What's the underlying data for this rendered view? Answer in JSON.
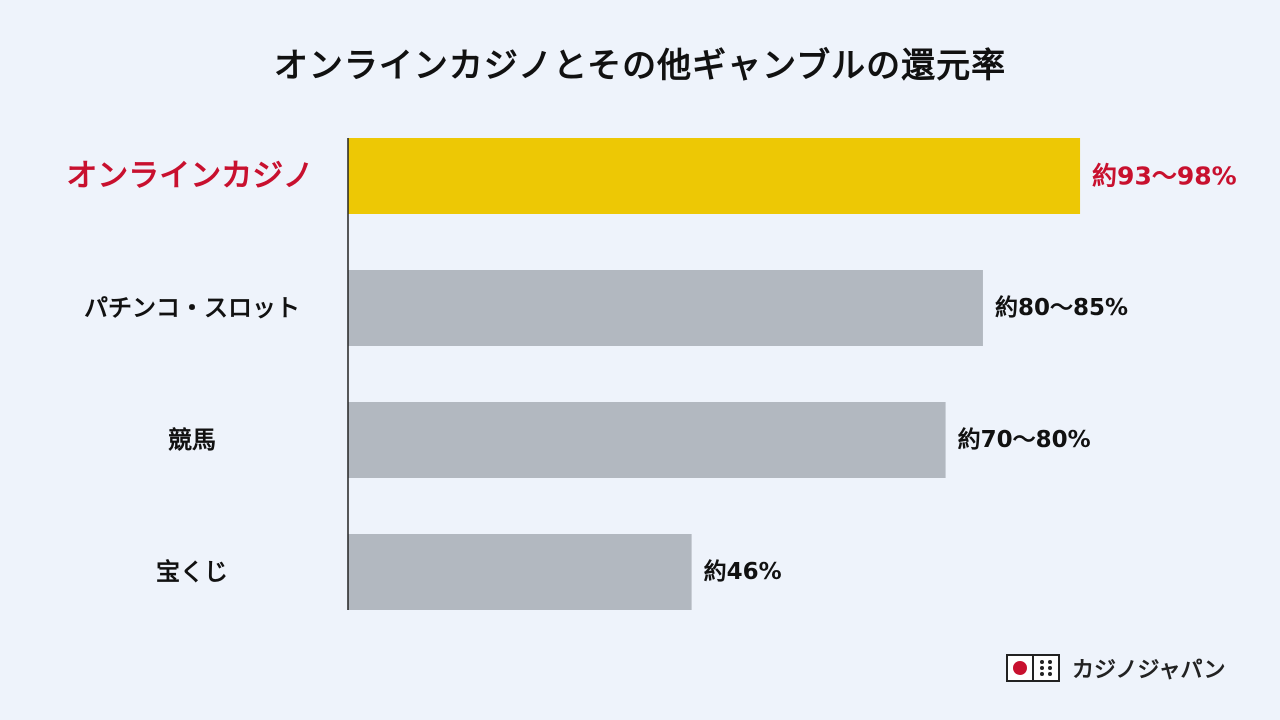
{
  "chart_data": {
    "type": "bar",
    "orientation": "horizontal",
    "title": "オンラインカジノとその他ギャンブルの還元率",
    "categories": [
      "オンラインカジノ",
      "パチンコ・スロット",
      "競馬",
      "宝くじ"
    ],
    "values": [
      98,
      85,
      80,
      46
    ],
    "value_labels": [
      "約93〜98%",
      "約80〜85%",
      "約70〜80%",
      "約46%"
    ],
    "xlim": [
      0,
      100
    ],
    "grid": false,
    "highlight_index": 0,
    "colors": {
      "highlight_bar": "#edc805",
      "bar": "#b2b8c0",
      "highlight_text": "#c8102e",
      "axis": "#222222"
    }
  },
  "brand": {
    "name": "カジノジャパン",
    "logo_icon": "japan-flag-dice-icon"
  }
}
